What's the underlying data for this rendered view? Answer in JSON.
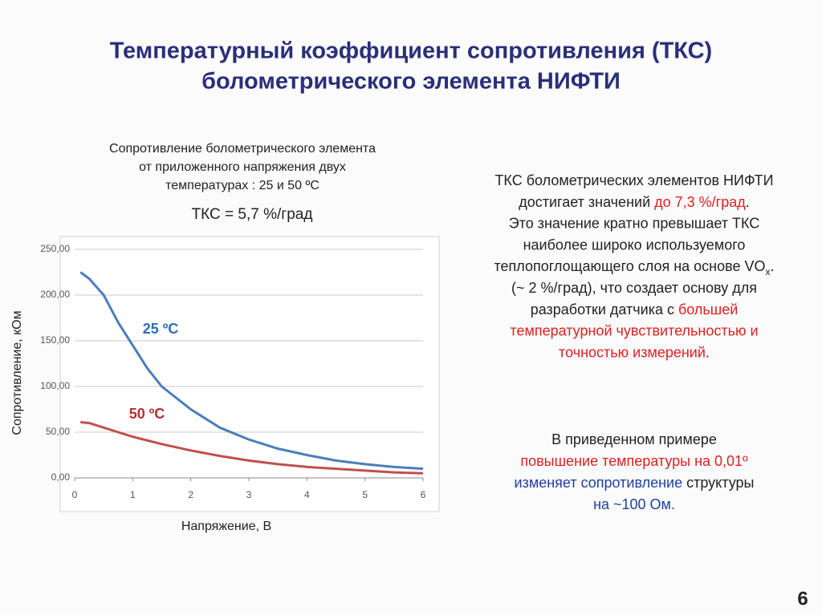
{
  "title": [
    "Температурный коэффициент сопротивления (ТКС)",
    "болометрического элемента НИФТИ"
  ],
  "chart_caption": [
    "Сопротивление болометрического элемента",
    "от приложенного напряжения двух",
    "температурах :  25 и  50 ºС"
  ],
  "tks": "ТКС = 5,7 %/град",
  "chart_data": {
    "type": "line",
    "ylabel": "Сопротивление, кОм",
    "xlabel": "Напряжение, В",
    "x": [
      0.1,
      0.25,
      0.5,
      0.75,
      1,
      1.25,
      1.5,
      2,
      2.5,
      3,
      3.5,
      4,
      4.5,
      5,
      5.5,
      6
    ],
    "series": [
      {
        "name": "25 ºC",
        "color": "#4a7ebb",
        "label_color": "#2e6db4",
        "values": [
          225,
          218,
          200,
          170,
          145,
          120,
          100,
          75,
          55,
          42,
          32,
          25,
          19,
          15,
          12,
          10
        ]
      },
      {
        "name": "50 ºC",
        "color": "#c0504d",
        "label_color": "#b5302c",
        "values": [
          61,
          60,
          55,
          50,
          45,
          41,
          37,
          30,
          24,
          19,
          15,
          12,
          10,
          8,
          6,
          5
        ]
      }
    ],
    "xlim": [
      0,
      6
    ],
    "ylim": [
      0,
      250
    ],
    "xticks": [
      0,
      1,
      2,
      3,
      4,
      5,
      6
    ],
    "yticks": [
      {
        "value": 0,
        "label": "0,00"
      },
      {
        "value": 50,
        "label": "50,00"
      },
      {
        "value": 100,
        "label": "100,00"
      },
      {
        "value": 150,
        "label": "150,00"
      },
      {
        "value": 200,
        "label": "200,00"
      },
      {
        "value": 250,
        "label": "250,00"
      }
    ],
    "grid": true
  },
  "notes": [
    {
      "lines": [
        [
          {
            "text": "ТКС болометрических элементов НИФТИ",
            "color": "#222"
          }
        ],
        [
          {
            "text": "достигает значений ",
            "color": "#222"
          },
          {
            "text": "до 7,3 %/град",
            "color": "#e02020"
          },
          {
            "text": ".",
            "color": "#222"
          }
        ],
        [
          {
            "text": "Это значение кратно превышает ТКС",
            "color": "#222"
          }
        ],
        [
          {
            "text": "наиболее широко используемого",
            "color": "#222"
          }
        ],
        [
          {
            "text": "теплопоглощающего слоя на основе VO",
            "color": "#222"
          },
          {
            "text": "x",
            "color": "#222",
            "sub": true
          },
          {
            "text": ".",
            "color": "#222"
          }
        ],
        [
          {
            "text": "(~ 2 %/град),  что создает основу для",
            "color": "#222"
          }
        ],
        [
          {
            "text": "разработки датчика с ",
            "color": "#222"
          },
          {
            "text": "большей",
            "color": "#e02020"
          }
        ],
        [
          {
            "text": "температурной чувствительностью и",
            "color": "#e02020"
          }
        ],
        [
          {
            "text": "точностью измерений",
            "color": "#e02020"
          },
          {
            "text": ".",
            "color": "#222"
          }
        ]
      ]
    },
    {
      "lines": [
        [
          {
            "text": "В приведенном примере",
            "color": "#222"
          }
        ],
        [
          {
            "text": "повышение температуры на 0,01º",
            "color": "#e02020"
          }
        ],
        [
          {
            "text": "изменяет сопротивление",
            "color": "#1f3fa0"
          },
          {
            "text": " структуры",
            "color": "#222"
          }
        ],
        [
          {
            "text": "на ~100 Ом.",
            "color": "#1f3fa0"
          }
        ]
      ]
    }
  ],
  "page_number": "6"
}
